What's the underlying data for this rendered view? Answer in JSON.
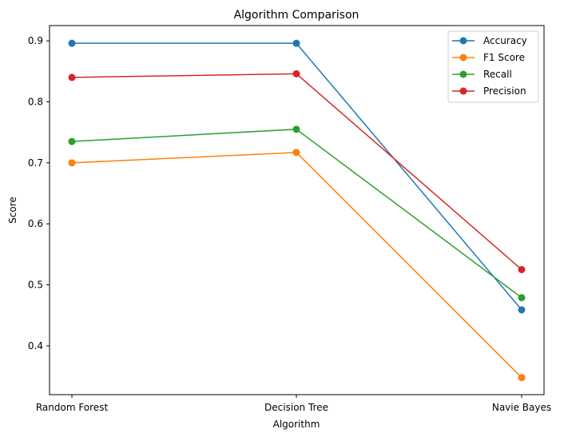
{
  "chart_data": {
    "type": "line",
    "title": "Algorithm Comparison",
    "xlabel": "Algorithm",
    "ylabel": "Score",
    "categories": [
      "Random Forest",
      "Decision Tree",
      "Navie Bayes"
    ],
    "ylim": [
      0.32,
      0.925
    ],
    "yticks": [
      "0.4",
      "0.5",
      "0.6",
      "0.7",
      "0.8",
      "0.9"
    ],
    "grid": false,
    "legend_position": "top-right",
    "series": [
      {
        "name": "Accuracy",
        "color": "#1f77b4",
        "values": [
          0.896,
          0.896,
          0.459
        ]
      },
      {
        "name": "F1 Score",
        "color": "#ff7f0e",
        "values": [
          0.7,
          0.717,
          0.348
        ]
      },
      {
        "name": "Recall",
        "color": "#2ca02c",
        "values": [
          0.735,
          0.755,
          0.479
        ]
      },
      {
        "name": "Precision",
        "color": "#d62728",
        "values": [
          0.84,
          0.846,
          0.525
        ]
      }
    ]
  }
}
